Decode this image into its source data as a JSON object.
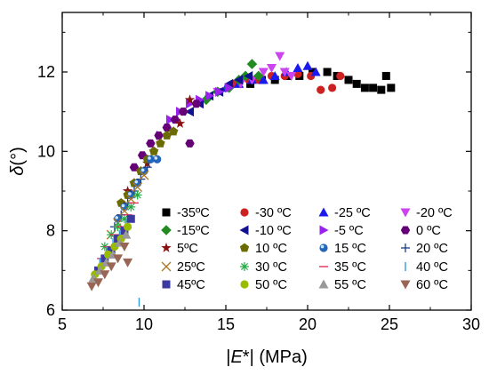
{
  "chart_data": {
    "type": "scatter",
    "title": "",
    "xlabel": {
      "pre": "|",
      "italic": "E",
      "post": "*| (MPa)"
    },
    "ylabel": {
      "italic": "δ",
      "post": "(°)"
    },
    "xlim": [
      5,
      30
    ],
    "ylim": [
      6,
      13.5
    ],
    "xticks": [
      5,
      10,
      15,
      20,
      25,
      30
    ],
    "yticks": [
      6,
      8,
      10,
      12
    ],
    "grid": false,
    "legend_position": "bottom-right",
    "series": [
      {
        "name": "-35ºC",
        "marker": "square",
        "color": "#000000",
        "points": [
          [
            16.5,
            11.7
          ],
          [
            17.2,
            11.8
          ],
          [
            18.0,
            11.8
          ],
          [
            18.8,
            11.9
          ],
          [
            19.5,
            11.9
          ],
          [
            20.3,
            12.0
          ],
          [
            21.2,
            12.0
          ],
          [
            21.8,
            11.9
          ],
          [
            22.5,
            11.8
          ],
          [
            23.0,
            11.7
          ],
          [
            23.5,
            11.6
          ],
          [
            24.0,
            11.6
          ],
          [
            24.5,
            11.55
          ],
          [
            24.8,
            11.9
          ],
          [
            25.1,
            11.6
          ]
        ]
      },
      {
        "name": "-30 ºC",
        "marker": "circle",
        "color": "#cc2222",
        "points": [
          [
            15.5,
            11.7
          ],
          [
            16.4,
            11.8
          ],
          [
            17.0,
            11.8
          ],
          [
            17.8,
            11.9
          ],
          [
            18.6,
            11.9
          ],
          [
            19.4,
            11.95
          ],
          [
            20.2,
            11.9
          ],
          [
            20.8,
            11.55
          ],
          [
            21.5,
            11.6
          ],
          [
            22.0,
            11.9
          ]
        ]
      },
      {
        "name": "-25 ºC",
        "marker": "triangle-up",
        "color": "#1a1aee",
        "points": [
          [
            15.0,
            11.6
          ],
          [
            15.8,
            11.7
          ],
          [
            16.6,
            11.8
          ],
          [
            17.3,
            11.8
          ],
          [
            18.0,
            11.9
          ],
          [
            18.7,
            12.0
          ],
          [
            19.4,
            12.1
          ],
          [
            20.0,
            12.15
          ],
          [
            20.5,
            12.0
          ]
        ]
      },
      {
        "name": "-20 ºC",
        "marker": "triangle-down",
        "color": "#cc44ee",
        "points": [
          [
            14.5,
            11.5
          ],
          [
            15.2,
            11.6
          ],
          [
            15.9,
            11.7
          ],
          [
            16.6,
            11.8
          ],
          [
            17.3,
            12.0
          ],
          [
            17.8,
            12.1
          ],
          [
            18.3,
            12.4
          ],
          [
            18.6,
            12.0
          ],
          [
            19.0,
            11.9
          ]
        ]
      },
      {
        "name": "-15ºC",
        "marker": "diamond",
        "color": "#228b22",
        "points": [
          [
            13.8,
            11.3
          ],
          [
            14.5,
            11.5
          ],
          [
            15.2,
            11.6
          ],
          [
            15.8,
            11.8
          ],
          [
            16.2,
            11.9
          ],
          [
            16.6,
            12.2
          ],
          [
            17.0,
            11.9
          ]
        ]
      },
      {
        "name": "-10 ºC",
        "marker": "triangle-left",
        "color": "#101090",
        "points": [
          [
            12.8,
            11.0
          ],
          [
            13.4,
            11.2
          ],
          [
            14.0,
            11.4
          ],
          [
            14.6,
            11.5
          ],
          [
            15.2,
            11.7
          ],
          [
            15.8,
            11.8
          ],
          [
            16.4,
            11.9
          ]
        ]
      },
      {
        "name": "-5 ºC",
        "marker": "triangle-right",
        "color": "#9922ee",
        "points": [
          [
            11.0,
            10.4
          ],
          [
            11.6,
            10.8
          ],
          [
            12.2,
            11.0
          ],
          [
            12.8,
            11.2
          ],
          [
            13.4,
            11.3
          ],
          [
            14.0,
            11.4
          ],
          [
            14.6,
            11.5
          ],
          [
            15.2,
            11.6
          ]
        ]
      },
      {
        "name": "0 ºC",
        "marker": "hexagon",
        "color": "#660077",
        "points": [
          [
            9.4,
            9.6
          ],
          [
            9.9,
            9.9
          ],
          [
            10.4,
            10.2
          ],
          [
            10.9,
            10.4
          ],
          [
            11.4,
            10.6
          ],
          [
            11.9,
            10.8
          ],
          [
            12.4,
            11.0
          ],
          [
            12.8,
            10.2
          ],
          [
            13.2,
            11.2
          ]
        ]
      },
      {
        "name": "5ºC",
        "marker": "star",
        "color": "#881111",
        "points": [
          [
            9.0,
            9.0
          ],
          [
            9.4,
            9.2
          ],
          [
            9.8,
            9.5
          ],
          [
            10.2,
            9.7
          ],
          [
            10.6,
            10.0
          ],
          [
            11.0,
            10.2
          ],
          [
            11.4,
            10.4
          ],
          [
            11.8,
            10.5
          ],
          [
            12.2,
            10.7
          ],
          [
            12.8,
            11.3
          ]
        ]
      },
      {
        "name": "10 ºC",
        "marker": "pentagon",
        "color": "#6b6b00",
        "points": [
          [
            8.6,
            8.7
          ],
          [
            9.0,
            8.9
          ],
          [
            9.4,
            9.2
          ],
          [
            9.8,
            9.5
          ],
          [
            10.2,
            9.8
          ],
          [
            10.6,
            10.0
          ],
          [
            11.0,
            10.2
          ],
          [
            11.4,
            10.4
          ],
          [
            11.8,
            10.5
          ]
        ]
      },
      {
        "name": "15 ºC",
        "marker": "ball",
        "color": "#2266bb",
        "points": [
          [
            8.4,
            8.3
          ],
          [
            8.8,
            8.6
          ],
          [
            9.2,
            8.9
          ],
          [
            9.6,
            9.2
          ],
          [
            10.0,
            9.5
          ],
          [
            10.4,
            9.8
          ],
          [
            10.8,
            9.8
          ]
        ]
      },
      {
        "name": "20 ºC",
        "marker": "plus",
        "color": "#1a3a8a",
        "points": [
          [
            8.2,
            8.1
          ],
          [
            8.6,
            8.4
          ],
          [
            9.0,
            8.7
          ],
          [
            9.4,
            9.0
          ],
          [
            9.8,
            9.3
          ],
          [
            10.2,
            9.6
          ]
        ]
      },
      {
        "name": "25ºC",
        "marker": "x",
        "color": "#aa7722",
        "points": [
          [
            8.0,
            7.9
          ],
          [
            8.4,
            8.2
          ],
          [
            8.8,
            8.5
          ],
          [
            9.2,
            8.8
          ],
          [
            9.6,
            9.1
          ],
          [
            10.0,
            9.4
          ]
        ]
      },
      {
        "name": "30 ºC",
        "marker": "asterisk",
        "color": "#22aa44",
        "points": [
          [
            7.6,
            7.6
          ],
          [
            8.0,
            7.9
          ],
          [
            8.4,
            8.1
          ],
          [
            8.8,
            8.3
          ],
          [
            9.2,
            8.6
          ],
          [
            9.6,
            8.9
          ]
        ]
      },
      {
        "name": "35 ºC",
        "marker": "dash",
        "color": "#dd3355",
        "points": [
          [
            7.4,
            7.3
          ],
          [
            7.8,
            7.6
          ],
          [
            8.2,
            7.9
          ],
          [
            8.6,
            8.1
          ],
          [
            9.0,
            8.4
          ],
          [
            9.4,
            8.7
          ]
        ]
      },
      {
        "name": "40 ºC",
        "marker": "vline",
        "color": "#3399dd",
        "points": [
          [
            7.3,
            7.2
          ],
          [
            7.7,
            7.5
          ],
          [
            8.1,
            7.7
          ],
          [
            8.5,
            7.9
          ],
          [
            8.9,
            8.2
          ],
          [
            9.7,
            6.2
          ]
        ]
      },
      {
        "name": "45ºC",
        "marker": "square",
        "color": "#3a3aa0",
        "points": [
          [
            7.2,
            7.0
          ],
          [
            7.6,
            7.3
          ],
          [
            8.0,
            7.5
          ],
          [
            8.4,
            7.8
          ],
          [
            8.8,
            8.0
          ],
          [
            9.2,
            8.3
          ]
        ]
      },
      {
        "name": "50 ºC",
        "marker": "circle",
        "color": "#99bb00",
        "points": [
          [
            7.0,
            6.9
          ],
          [
            7.4,
            7.1
          ],
          [
            7.8,
            7.4
          ],
          [
            8.2,
            7.6
          ],
          [
            8.6,
            7.8
          ],
          [
            9.0,
            8.1
          ]
        ]
      },
      {
        "name": "55 ºC",
        "marker": "triangle-up",
        "color": "#999999",
        "points": [
          [
            6.9,
            6.8
          ],
          [
            7.3,
            7.0
          ],
          [
            7.7,
            7.2
          ],
          [
            8.1,
            7.4
          ],
          [
            8.5,
            7.7
          ],
          [
            8.9,
            7.9
          ]
        ]
      },
      {
        "name": "60 ºC",
        "marker": "triangle-down",
        "color": "#996655",
        "points": [
          [
            6.8,
            6.6
          ],
          [
            7.2,
            6.7
          ],
          [
            7.6,
            6.9
          ],
          [
            8.0,
            7.1
          ],
          [
            8.4,
            7.3
          ],
          [
            8.8,
            7.6
          ],
          [
            9.0,
            7.2
          ]
        ]
      }
    ]
  }
}
